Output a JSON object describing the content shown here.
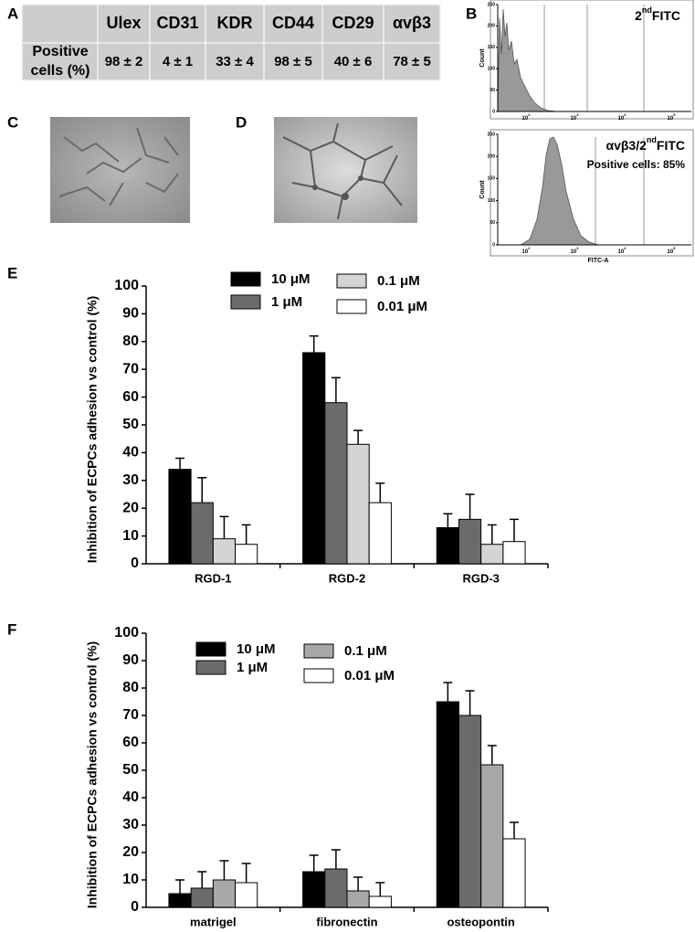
{
  "panel_labels": [
    "A",
    "B",
    "C",
    "D",
    "E",
    "F"
  ],
  "table": {
    "columns": [
      "Ulex",
      "CD31",
      "KDR",
      "CD44",
      "CD29",
      "αvβ3"
    ],
    "row_label": [
      "Positive",
      "cells (%)"
    ],
    "row": [
      "98 ± 2",
      "4 ± 1",
      "33 ± 4",
      "98 ± 5",
      "40 ± 6",
      "78 ± 5"
    ]
  },
  "flow": [
    {
      "label_main": "2",
      "label_sup": "nd",
      "label_end": "FITC",
      "y_axis": "Count",
      "yticks": [
        0,
        50,
        100,
        150,
        200,
        250
      ],
      "xticks": [
        {
          "base": "10",
          "exp": "2"
        },
        {
          "base": "10",
          "exp": "3"
        },
        {
          "base": "10",
          "exp": "4"
        },
        {
          "base": "10",
          "exp": "5"
        }
      ]
    },
    {
      "label_main": "αvβ3/2",
      "label_sup": "nd",
      "label_end": "FITC",
      "note": "Positive cells: 85%",
      "y_axis": "Count",
      "x_axis": "FITC-A",
      "yticks": [
        0,
        50,
        100,
        150,
        200,
        250
      ],
      "xticks": [
        {
          "base": "10",
          "exp": "2"
        },
        {
          "base": "10",
          "exp": "3"
        },
        {
          "base": "10",
          "exp": "4"
        },
        {
          "base": "10",
          "exp": "5"
        }
      ]
    }
  ],
  "chart_data": [
    {
      "type": "bar",
      "y_label": "Inhibition of ECPCs adhesion vs control (%)",
      "categories": [
        "RGD-1",
        "RGD-2",
        "RGD-3"
      ],
      "series": [
        {
          "name": "10 μM",
          "color": "#000000",
          "values": [
            34,
            76,
            13
          ],
          "errors": [
            4,
            6,
            5
          ]
        },
        {
          "name": "1  μM",
          "color": "#6b6b6b",
          "values": [
            22,
            58,
            16
          ],
          "errors": [
            9,
            9,
            9
          ]
        },
        {
          "name": "0.1 μM",
          "color": "#d4d4d4",
          "values": [
            9,
            43,
            7
          ],
          "errors": [
            8,
            5,
            7
          ]
        },
        {
          "name": "0.01 μM",
          "color": "#ffffff",
          "values": [
            7,
            22,
            8
          ],
          "errors": [
            7,
            7,
            8
          ]
        }
      ],
      "ylim": [
        0,
        100
      ],
      "yticks": [
        0,
        10,
        20,
        30,
        40,
        50,
        60,
        70,
        80,
        90,
        100
      ]
    },
    {
      "type": "bar",
      "y_label": "Inhibition of ECPCs adhesion vs control (%)",
      "categories": [
        "matrigel",
        "fibronectin",
        "osteopontin"
      ],
      "series": [
        {
          "name": "10 μM",
          "color": "#000000",
          "values": [
            5,
            13,
            75
          ],
          "errors": [
            5,
            6,
            7
          ]
        },
        {
          "name": "1  μM",
          "color": "#6b6b6b",
          "values": [
            7,
            14,
            70
          ],
          "errors": [
            6,
            7,
            9
          ]
        },
        {
          "name": "0.1 μM",
          "color": "#a8a8a8",
          "values": [
            10,
            6,
            52
          ],
          "errors": [
            7,
            5,
            7
          ]
        },
        {
          "name": "0.01 μM",
          "color": "#ffffff",
          "values": [
            9,
            4,
            25
          ],
          "errors": [
            7,
            5,
            6
          ]
        }
      ],
      "ylim": [
        0,
        100
      ],
      "yticks": [
        0,
        10,
        20,
        30,
        40,
        50,
        60,
        70,
        80,
        90,
        100
      ]
    }
  ]
}
